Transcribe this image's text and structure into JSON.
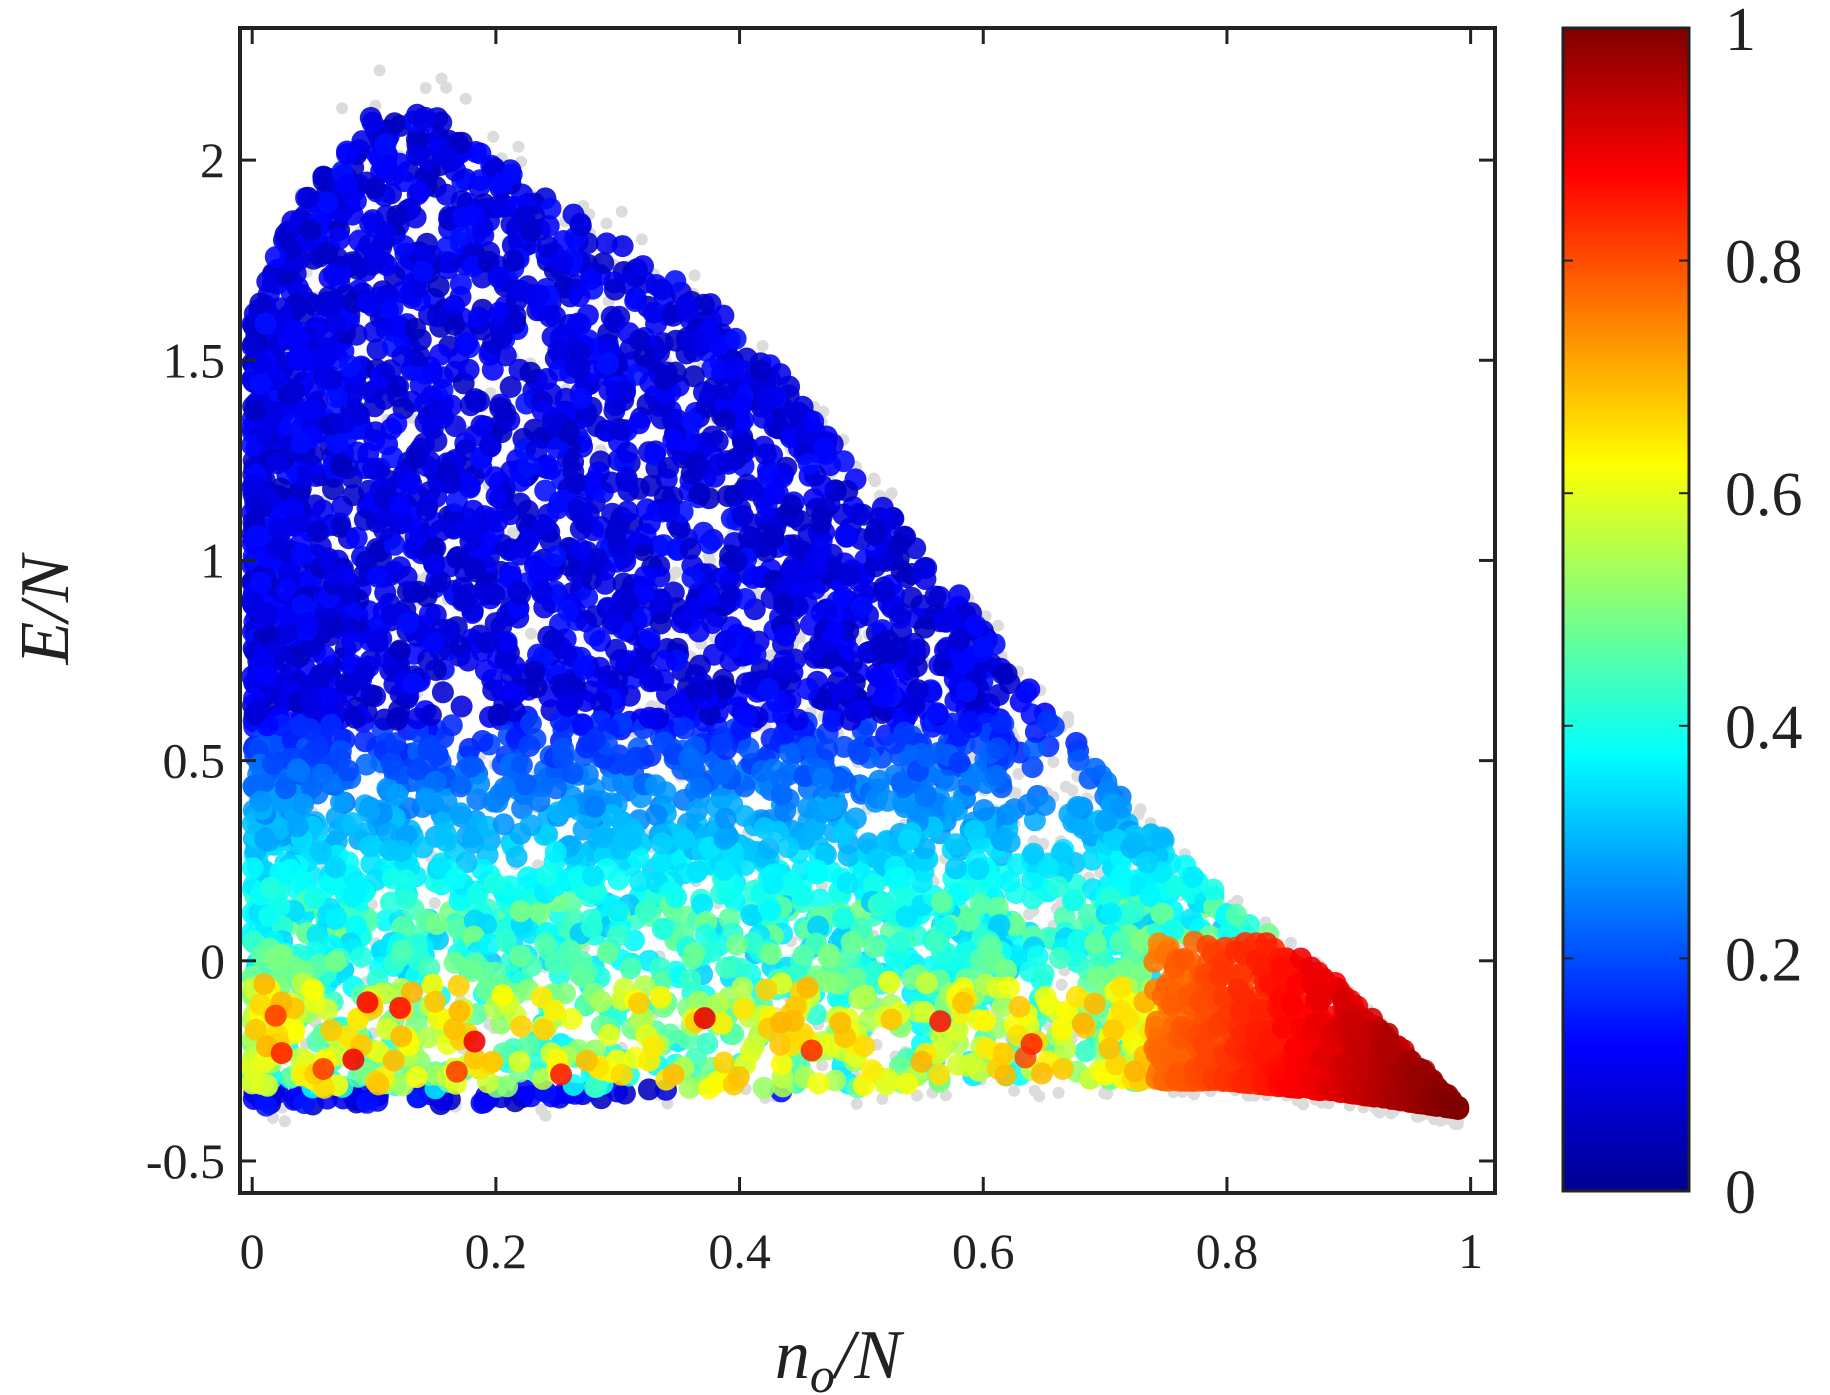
{
  "chart_data": {
    "type": "scatter",
    "xlabel": "n_o/N",
    "xlabel_main": "n",
    "xlabel_sub": "o",
    "xlabel_rest": "/N",
    "ylabel": "E/N",
    "xlim": [
      -0.01,
      1.02
    ],
    "ylim": [
      -0.58,
      2.33
    ],
    "x_ticks": [
      0,
      0.2,
      0.4,
      0.6,
      0.8,
      1
    ],
    "x_tick_labels": [
      "0",
      "0.2",
      "0.4",
      "0.6",
      "0.8",
      "1"
    ],
    "y_ticks": [
      -0.5,
      0,
      0.5,
      1,
      1.5,
      2
    ],
    "y_tick_labels": [
      "-0.5",
      "0",
      "0.5",
      "1",
      "1.5",
      "2"
    ],
    "grid": false,
    "colorbar": {
      "colormap": "jet",
      "range": [
        0,
        1
      ],
      "ticks": [
        0,
        0.2,
        0.4,
        0.6,
        0.8,
        1
      ],
      "tick_labels": [
        "0",
        "0.2",
        "0.4",
        "0.6",
        "0.8",
        "1"
      ]
    },
    "background_series": {
      "color": "#dcdcdc",
      "note": "grey points bounding the colored region"
    },
    "region_boundary": {
      "upper_envelope": [
        [
          0.0,
          1.6
        ],
        [
          0.03,
          1.85
        ],
        [
          0.08,
          2.05
        ],
        [
          0.1,
          2.12
        ],
        [
          0.15,
          2.12
        ],
        [
          0.2,
          2.0
        ],
        [
          0.3,
          1.8
        ],
        [
          0.4,
          1.6
        ],
        [
          0.5,
          1.2
        ],
        [
          0.6,
          0.85
        ],
        [
          0.7,
          0.45
        ],
        [
          0.8,
          0.15
        ],
        [
          0.9,
          -0.08
        ],
        [
          0.99,
          -0.36
        ]
      ],
      "lower_envelope": [
        [
          0.0,
          -0.37
        ],
        [
          0.3,
          -0.35
        ],
        [
          0.6,
          -0.3
        ],
        [
          0.8,
          -0.3
        ],
        [
          0.9,
          -0.33
        ],
        [
          0.99,
          -0.37
        ]
      ]
    },
    "color_trend": [
      {
        "region": "E/N > 0.6",
        "value": 0.1
      },
      {
        "region": "0 < E/N < 0.5",
        "value": 0.35
      },
      {
        "region": "-0.3 < E/N < 0, n_o/N < 0.7",
        "value": 0.55
      },
      {
        "region": "n_o/N > 0.75, E/N < 0",
        "value": 0.9
      },
      {
        "region": "n_o/N > 0.95, E/N ≈ -0.35",
        "value": 1.0
      },
      {
        "region": "E/N ≈ -0.35, n_o/N < 0.7",
        "value": 0.05
      }
    ]
  }
}
